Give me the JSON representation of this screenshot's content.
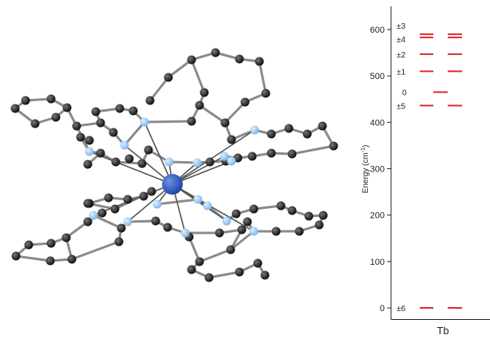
{
  "figure": {
    "left_panel": "molecular-structure",
    "right_panel": "energy-level-diagram"
  },
  "colors": {
    "carbon": "#111111",
    "nitrogen": "#7fb6ea",
    "metal": "#1f49b0",
    "bond": "#8a8a8a",
    "level": "#e0262b",
    "axis": "#222222"
  },
  "chart_data": {
    "type": "energy-level",
    "ylabel": "Energy (cm",
    "ylabel_sup": "-1",
    "ylabel_close": ")",
    "yticks": [
      0,
      100,
      200,
      300,
      400,
      500,
      600
    ],
    "ylim": [
      -25,
      650
    ],
    "category": "Tb",
    "levels": [
      {
        "label": "±6",
        "energy": 0,
        "split": true
      },
      {
        "label": "±5",
        "energy": 436,
        "split": true
      },
      {
        "label": "0",
        "energy": 465,
        "split": false
      },
      {
        "label": "±1",
        "energy": 510,
        "split": true
      },
      {
        "label": "±2",
        "energy": 547,
        "split": true
      },
      {
        "label": "±4",
        "energy": 583,
        "split": true
      },
      {
        "label": "±3",
        "energy": 590,
        "split": true
      }
    ]
  }
}
